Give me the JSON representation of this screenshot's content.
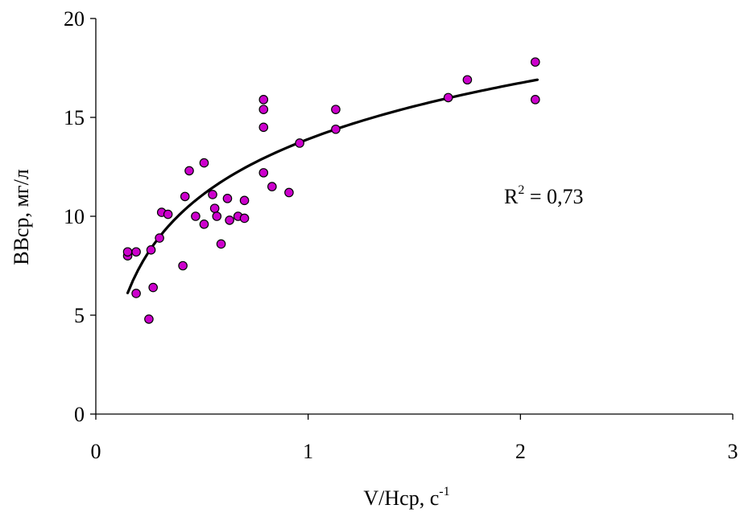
{
  "chart_data": {
    "type": "scatter",
    "xlabel": "V/Hср, с",
    "xlabel_superscript": "-1",
    "ylabel": "ВВср, мг/л",
    "xlim": [
      0,
      3
    ],
    "ylim": [
      0,
      20
    ],
    "x_ticks": [
      0,
      1,
      2,
      3
    ],
    "x_tick_labels": [
      "0",
      "1",
      "2",
      "3"
    ],
    "y_ticks": [
      0,
      5,
      10,
      15,
      20
    ],
    "y_tick_labels": [
      "0",
      "5",
      "10",
      "15",
      "20"
    ],
    "grid": false,
    "marker_color": "#CC00CC",
    "annotation": {
      "text_main": "R",
      "text_superscript": "2",
      "text_rest": " = 0,73"
    },
    "points": [
      [
        0.15,
        8.0
      ],
      [
        0.15,
        8.2
      ],
      [
        0.19,
        8.2
      ],
      [
        0.19,
        6.1
      ],
      [
        0.25,
        4.8
      ],
      [
        0.26,
        8.3
      ],
      [
        0.27,
        6.4
      ],
      [
        0.3,
        8.9
      ],
      [
        0.31,
        10.2
      ],
      [
        0.34,
        10.1
      ],
      [
        0.41,
        7.5
      ],
      [
        0.42,
        11.0
      ],
      [
        0.44,
        12.3
      ],
      [
        0.47,
        10.0
      ],
      [
        0.51,
        12.7
      ],
      [
        0.51,
        9.6
      ],
      [
        0.55,
        11.1
      ],
      [
        0.56,
        10.4
      ],
      [
        0.57,
        10.0
      ],
      [
        0.59,
        8.6
      ],
      [
        0.62,
        10.9
      ],
      [
        0.63,
        9.8
      ],
      [
        0.67,
        10.0
      ],
      [
        0.7,
        10.8
      ],
      [
        0.7,
        9.9
      ],
      [
        0.79,
        15.9
      ],
      [
        0.79,
        15.4
      ],
      [
        0.79,
        14.5
      ],
      [
        0.79,
        12.2
      ],
      [
        0.83,
        11.5
      ],
      [
        0.91,
        11.2
      ],
      [
        0.96,
        13.7
      ],
      [
        1.13,
        15.4
      ],
      [
        1.13,
        14.4
      ],
      [
        1.66,
        16.0
      ],
      [
        1.75,
        16.9
      ],
      [
        2.07,
        17.8
      ],
      [
        2.07,
        15.9
      ]
    ],
    "trendline": {
      "type": "logarithmic",
      "a": 13.9,
      "b": 4.1,
      "x_range": [
        0.15,
        2.08
      ]
    }
  }
}
